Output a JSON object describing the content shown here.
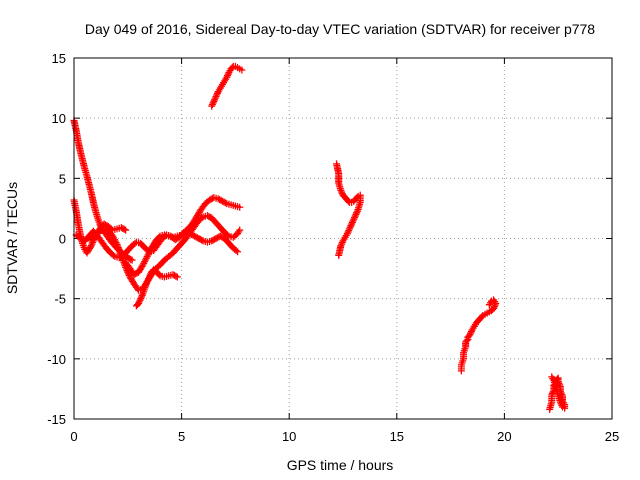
{
  "chart_data": {
    "type": "scatter",
    "title": "Day 049 of 2016, Sidereal Day-to-day VTEC variation (SDTVAR) for receiver p778",
    "xlabel": "GPS time / hours",
    "ylabel": "SDTVAR / TECUs",
    "xlim": [
      0,
      25
    ],
    "ylim": [
      -15,
      15
    ],
    "xticks": [
      0,
      5,
      10,
      15,
      20,
      25
    ],
    "yticks": [
      -15,
      -10,
      -5,
      0,
      5,
      10,
      15
    ],
    "grid": true,
    "legend": "none",
    "marker": "plus",
    "color": "#ff0000",
    "series": [
      {
        "x": [
          0.0,
          0.1,
          0.2,
          0.3,
          0.4,
          0.5,
          0.6,
          0.7,
          0.8,
          0.9,
          1.0,
          1.1,
          1.2,
          1.3,
          1.5,
          1.7,
          1.9,
          2.1,
          2.3,
          2.5,
          2.7
        ],
        "y": [
          9.8,
          9.0,
          8.0,
          7.2,
          6.5,
          5.8,
          5.2,
          4.5,
          3.8,
          3.0,
          2.3,
          1.7,
          1.2,
          0.8,
          0.3,
          -0.2,
          -0.6,
          -1.0,
          -1.3,
          -1.6,
          -1.8
        ]
      },
      {
        "x": [
          0.0,
          0.1,
          0.2,
          0.3,
          0.4,
          0.5,
          0.6,
          0.8,
          1.0,
          1.2,
          1.4,
          1.6,
          1.8,
          2.0,
          2.2,
          2.4
        ],
        "y": [
          3.2,
          2.3,
          1.2,
          0.3,
          -0.4,
          -0.9,
          -1.2,
          -0.6,
          0.2,
          0.8,
          1.2,
          1.0,
          0.7,
          0.8,
          0.9,
          0.7
        ]
      },
      {
        "x": [
          0.1,
          0.3,
          0.5,
          0.7,
          0.9,
          1.1,
          1.3,
          1.5,
          1.7,
          1.9,
          2.1,
          2.3,
          2.5,
          2.7,
          2.9,
          3.1,
          3.3,
          3.5,
          3.7,
          3.9,
          4.1,
          4.3,
          4.5,
          4.7,
          4.9,
          5.1,
          5.3,
          5.5,
          5.7,
          5.9,
          6.1,
          6.3,
          6.5,
          6.7,
          6.9,
          7.1,
          7.3,
          7.5,
          7.7
        ],
        "y": [
          0.3,
          0.0,
          -0.2,
          0.2,
          0.6,
          0.2,
          -0.3,
          -0.8,
          -1.2,
          -1.5,
          -1.6,
          -1.4,
          -1.0,
          -0.6,
          -0.3,
          -0.4,
          -0.8,
          -1.1,
          -1.0,
          -0.5,
          0.0,
          0.3,
          0.2,
          -0.1,
          0.1,
          0.5,
          0.8,
          1.2,
          1.8,
          2.4,
          2.9,
          3.2,
          3.4,
          3.3,
          3.1,
          2.9,
          2.8,
          2.7,
          2.6
        ]
      },
      {
        "x": [
          0.8,
          1.0,
          1.2,
          1.4,
          1.6,
          1.8,
          2.0,
          2.2,
          2.4,
          2.6,
          2.8,
          3.0,
          3.2,
          3.4,
          3.6,
          3.8,
          4.0,
          4.2,
          4.4,
          4.6,
          4.8,
          5.0,
          5.2,
          5.4,
          5.6,
          5.8,
          6.0,
          6.2,
          6.4,
          6.6,
          6.8,
          7.0,
          7.2,
          7.4,
          7.6,
          7.7
        ],
        "y": [
          -0.2,
          0.3,
          0.6,
          0.8,
          0.6,
          0.2,
          -0.5,
          -1.4,
          -2.4,
          -3.2,
          -3.8,
          -4.3,
          -4.2,
          -3.6,
          -3.0,
          -2.5,
          -2.2,
          -1.8,
          -1.5,
          -1.2,
          -0.8,
          -0.4,
          0.0,
          0.5,
          1.0,
          1.5,
          1.8,
          1.9,
          1.7,
          1.3,
          0.9,
          0.5,
          0.2,
          0.1,
          0.4,
          0.7
        ]
      },
      {
        "x": [
          2.4,
          2.6,
          2.8,
          3.0,
          3.2,
          3.4,
          3.6,
          3.8,
          4.0,
          4.2,
          4.4,
          4.6,
          4.8,
          5.0,
          5.2,
          5.4,
          5.6,
          5.8,
          6.0,
          6.2,
          6.4,
          6.6,
          6.8,
          7.0,
          7.2,
          7.4,
          7.6
        ],
        "y": [
          -2.0,
          -2.5,
          -3.0,
          -2.8,
          -2.2,
          -1.5,
          -0.8,
          -0.2,
          0.2,
          0.3,
          0.2,
          0.1,
          0.2,
          0.3,
          0.4,
          0.4,
          0.2,
          0.0,
          -0.2,
          -0.3,
          -0.2,
          0.0,
          0.2,
          0.0,
          -0.4,
          -0.8,
          -1.1
        ]
      },
      {
        "x": [
          2.9,
          3.0,
          3.1,
          3.2,
          3.3,
          3.4,
          3.5,
          3.6,
          3.7,
          3.8,
          3.9,
          4.0,
          4.2,
          4.4,
          4.6,
          4.8
        ],
        "y": [
          -5.6,
          -5.4,
          -5.0,
          -4.6,
          -4.1,
          -3.6,
          -3.2,
          -2.8,
          -2.6,
          -2.7,
          -2.9,
          -3.1,
          -3.2,
          -3.1,
          -3.0,
          -3.2
        ]
      },
      {
        "x": [
          6.4,
          6.5,
          6.6,
          6.7,
          6.8,
          6.9,
          7.0,
          7.1,
          7.2,
          7.3,
          7.4,
          7.5,
          7.6,
          7.7,
          7.8
        ],
        "y": [
          11.0,
          11.4,
          11.8,
          12.2,
          12.5,
          12.8,
          13.1,
          13.4,
          13.8,
          14.1,
          14.3,
          14.3,
          14.2,
          14.1,
          14.0
        ]
      },
      {
        "x": [
          12.2,
          12.3,
          12.3,
          12.4,
          12.5,
          12.6,
          12.7,
          12.8,
          12.9,
          13.0,
          13.1,
          13.2,
          13.3,
          13.3,
          13.2,
          13.1,
          13.0,
          12.9,
          12.8,
          12.7,
          12.6,
          12.5,
          12.4,
          12.3
        ],
        "y": [
          6.2,
          5.4,
          4.6,
          4.0,
          3.6,
          3.4,
          3.2,
          3.0,
          3.0,
          3.1,
          3.3,
          3.5,
          3.6,
          3.0,
          2.4,
          2.0,
          1.6,
          1.2,
          0.8,
          0.4,
          0.1,
          -0.2,
          -0.6,
          -1.4
        ]
      },
      {
        "x": [
          18.0,
          18.0,
          18.1,
          18.1,
          18.2,
          18.2,
          18.3,
          18.3,
          18.4,
          18.5,
          18.6,
          18.7,
          18.8,
          18.9,
          19.0,
          19.1,
          19.2,
          19.3,
          19.4,
          19.5,
          19.6,
          19.5,
          19.4,
          19.3
        ],
        "y": [
          -11.0,
          -10.5,
          -10.0,
          -9.5,
          -9.0,
          -8.6,
          -8.4,
          -8.2,
          -8.0,
          -7.6,
          -7.3,
          -7.0,
          -6.8,
          -6.6,
          -6.4,
          -6.3,
          -6.2,
          -6.1,
          -6.0,
          -5.8,
          -5.4,
          -5.1,
          -5.2,
          -5.5
        ]
      },
      {
        "x": [
          22.1,
          22.2,
          22.2,
          22.3,
          22.3,
          22.4,
          22.4,
          22.5,
          22.5,
          22.6,
          22.6,
          22.7,
          22.7,
          22.8,
          22.8,
          22.7,
          22.6,
          22.5,
          22.4,
          22.3,
          22.2
        ],
        "y": [
          -14.2,
          -13.6,
          -13.0,
          -12.6,
          -12.2,
          -12.0,
          -11.8,
          -11.6,
          -11.9,
          -12.3,
          -12.7,
          -13.1,
          -13.5,
          -13.8,
          -14.1,
          -14.0,
          -13.6,
          -13.0,
          -12.4,
          -11.8,
          -11.5
        ]
      }
    ]
  }
}
